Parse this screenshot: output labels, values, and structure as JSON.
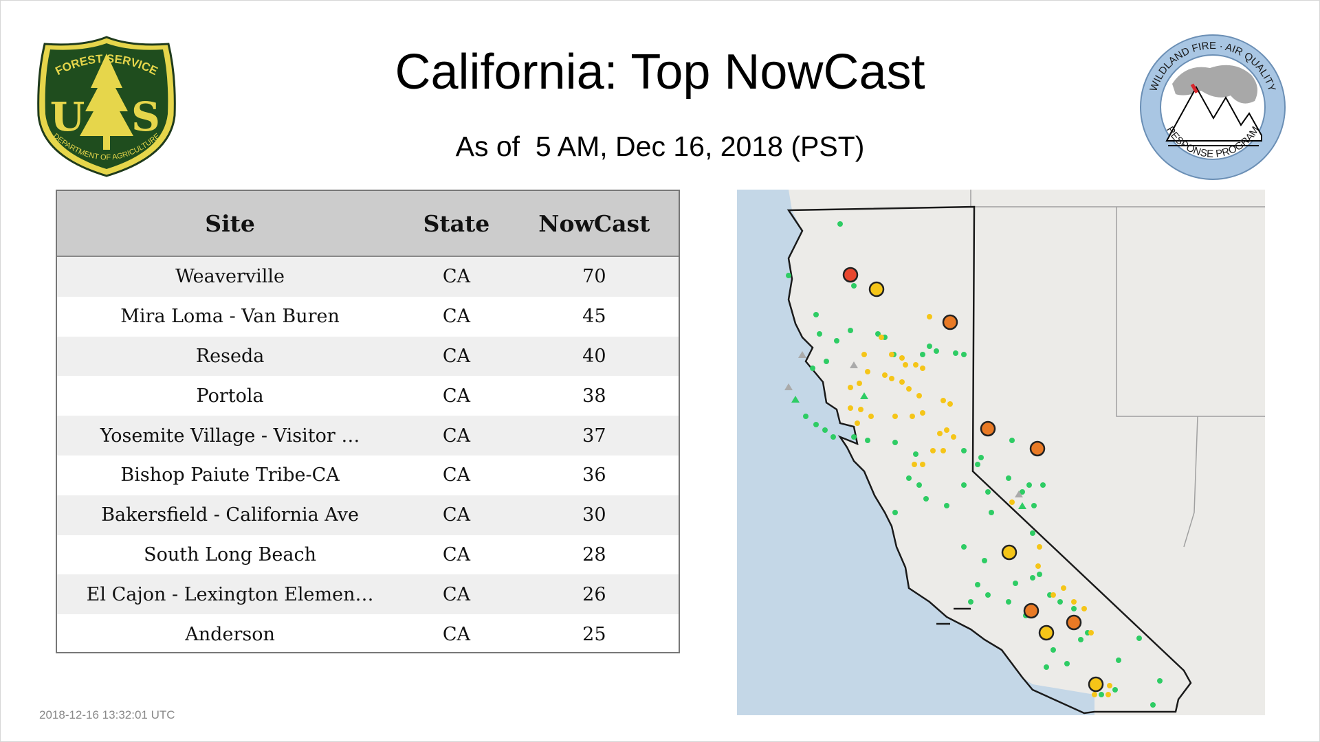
{
  "header": {
    "title": "California: Top NowCast",
    "subtitle": "As of  5 AM, Dec 16, 2018 (PST)"
  },
  "logos": {
    "forest_service": {
      "top_text": "FOREST SERVICE",
      "letters": "U S",
      "bottom_text": "DEPARTMENT OF AGRICULTURE"
    },
    "wildland": {
      "top_text": "WILDLAND FIRE · AIR QUALITY",
      "bottom_text": "RESPONSE PROGRAM"
    }
  },
  "table": {
    "headers": {
      "site": "Site",
      "state": "State",
      "nowcast": "NowCast"
    },
    "rows": [
      {
        "site": "Weaverville",
        "state": "CA",
        "nowcast": "70"
      },
      {
        "site": "Mira Loma - Van Buren",
        "state": "CA",
        "nowcast": "45"
      },
      {
        "site": "Reseda",
        "state": "CA",
        "nowcast": "40"
      },
      {
        "site": "Portola",
        "state": "CA",
        "nowcast": "38"
      },
      {
        "site": "Yosemite Village - Visitor …",
        "state": "CA",
        "nowcast": "37"
      },
      {
        "site": "Bishop Paiute Tribe-CA",
        "state": "CA",
        "nowcast": "36"
      },
      {
        "site": "Bakersfield - California Ave",
        "state": "CA",
        "nowcast": "30"
      },
      {
        "site": "South Long Beach",
        "state": "CA",
        "nowcast": "28"
      },
      {
        "site": "El Cajon - Lexington Elemen…",
        "state": "CA",
        "nowcast": "26"
      },
      {
        "site": "Anderson",
        "state": "CA",
        "nowcast": "25"
      }
    ]
  },
  "map": {
    "colors": {
      "ocean": "#c4d7e7",
      "land": "#ecebe8",
      "border": "#1a1a1a",
      "red": "#e8472f",
      "orange": "#e97a25",
      "yellow": "#f5c518",
      "green": "#2ecc64",
      "gray": "#aaaaaa"
    }
  },
  "footer": {
    "timestamp": "2018-12-16 13:32:01 UTC"
  }
}
